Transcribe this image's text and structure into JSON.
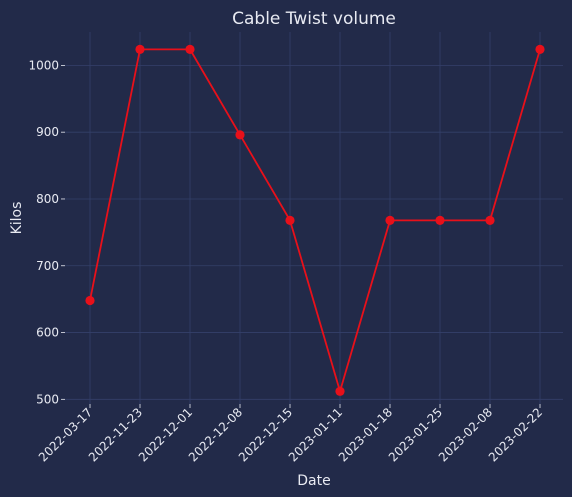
{
  "chart_data": {
    "type": "line",
    "title": "Cable Twist volume",
    "xlabel": "Date",
    "ylabel": "Kilos",
    "categories": [
      "2022-03-17",
      "2022-11-23",
      "2022-12-01",
      "2022-12-08",
      "2022-12-15",
      "2023-01-11",
      "2023-01-18",
      "2023-01-25",
      "2023-02-08",
      "2023-02-22"
    ],
    "series": [
      {
        "values": [
          648,
          1024,
          1024,
          896,
          768,
          512,
          768,
          768,
          768,
          1024
        ]
      }
    ],
    "ylim": [
      493,
      1050
    ],
    "yticks": [
      500,
      600,
      700,
      800,
      900,
      1000
    ],
    "grid": true,
    "legend": "none",
    "colors": {
      "background": "#222a49",
      "grid": "#34406a",
      "line": "#e8101a",
      "text": "#e8eaf2"
    }
  }
}
